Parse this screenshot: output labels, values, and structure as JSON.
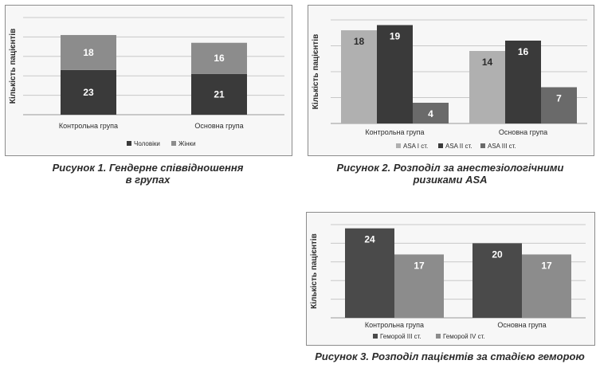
{
  "figures": [
    {
      "caption_lines": [
        "Рисунок 1. Гендерне співвідношення",
        "в групах"
      ],
      "chart_data": {
        "type": "bar",
        "stacked": true,
        "categories": [
          "Контрольна група",
          "Основна група"
        ],
        "series": [
          {
            "name": "Чоловіки",
            "values": [
              23,
              21
            ],
            "color": "#3a3a3a"
          },
          {
            "name": "Жінки",
            "values": [
              18,
              16
            ],
            "color": "#8c8c8c"
          }
        ],
        "ylabel": "Кількість пацієнтів",
        "ylim": [
          0,
          50
        ],
        "grid": true,
        "legend": "bottom",
        "data_label_color": "#ffffff"
      }
    },
    {
      "caption_lines": [
        "Рисунок 2. Розподіл за анестезіологічними",
        "ризиками ASA"
      ],
      "chart_data": {
        "type": "bar",
        "stacked": false,
        "categories": [
          "Контрольна група",
          "Основна група"
        ],
        "series": [
          {
            "name": "ASA I ст.",
            "values": [
              18,
              14
            ],
            "color": "#b0b0b0"
          },
          {
            "name": "ASA II ст.",
            "values": [
              19,
              16
            ],
            "color": "#3a3a3a"
          },
          {
            "name": "ASA III ст.",
            "values": [
              4,
              7
            ],
            "color": "#6a6a6a"
          }
        ],
        "ylabel": "Кількість пацієнтів",
        "ylim": [
          0,
          20
        ],
        "grid": true,
        "legend": "bottom",
        "data_label_colors": [
          "#2b2b2b",
          "#ffffff",
          "#ffffff"
        ]
      }
    },
    {
      "caption_lines": [
        "Рисунок 3. Розподіл пацієнтів за стадією геморою"
      ],
      "chart_data": {
        "type": "bar",
        "stacked": false,
        "categories": [
          "Контрольна група",
          "Основна група"
        ],
        "series": [
          {
            "name": "Геморой III ст.",
            "values": [
              24,
              20
            ],
            "color": "#4a4a4a"
          },
          {
            "name": "Геморой IV ст.",
            "values": [
              17,
              17
            ],
            "color": "#8c8c8c"
          }
        ],
        "ylabel": "Кількість пацієнтів",
        "ylim": [
          0,
          25
        ],
        "grid": true,
        "legend": "bottom",
        "data_label_color": "#ffffff"
      }
    }
  ]
}
